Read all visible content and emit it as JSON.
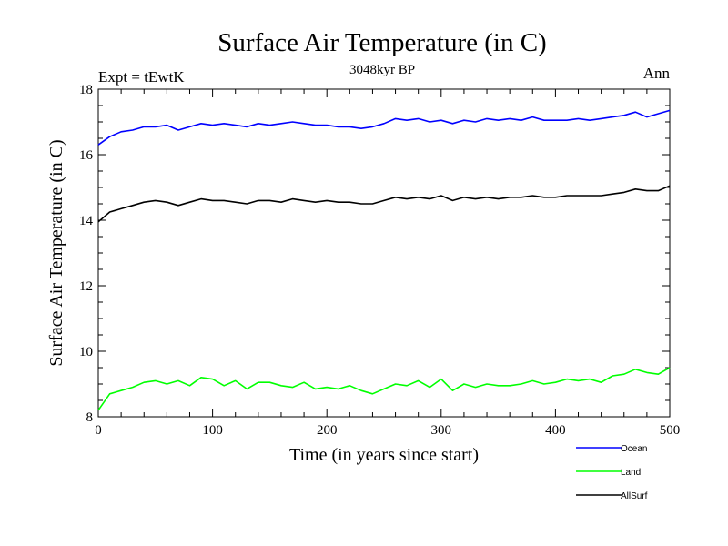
{
  "chart_data": {
    "type": "line",
    "title": "Surface Air Temperature (in C)",
    "subtitle": "3048kyr BP",
    "left_label": "Expt = tEwtK",
    "right_label": "Ann",
    "xlabel": "Time (in years since start)",
    "ylabel": "Surface Air Temperature (in C)",
    "xlim": [
      0,
      500
    ],
    "ylim": [
      8,
      18
    ],
    "x_ticks": [
      0,
      100,
      200,
      300,
      400,
      500
    ],
    "y_ticks": [
      8,
      10,
      12,
      14,
      16,
      18
    ],
    "x_tick_labels": [
      "0",
      "100",
      "200",
      "300",
      "400",
      "500"
    ],
    "y_tick_labels": [
      "8",
      "10",
      "12",
      "14",
      "16",
      "18"
    ],
    "grid": false,
    "legend_position": "bottom-right outside",
    "x": [
      0,
      10,
      20,
      30,
      40,
      50,
      60,
      70,
      80,
      90,
      100,
      110,
      120,
      130,
      140,
      150,
      160,
      170,
      180,
      190,
      200,
      210,
      220,
      230,
      240,
      250,
      260,
      270,
      280,
      290,
      300,
      310,
      320,
      330,
      340,
      350,
      360,
      370,
      380,
      390,
      400,
      410,
      420,
      430,
      440,
      450,
      460,
      470,
      480,
      490,
      500
    ],
    "series": [
      {
        "name": "Ocean",
        "color": "#0000ff",
        "values": [
          16.3,
          16.55,
          16.7,
          16.75,
          16.85,
          16.85,
          16.9,
          16.75,
          16.85,
          16.95,
          16.9,
          16.95,
          16.9,
          16.85,
          16.95,
          16.9,
          16.95,
          17.0,
          16.95,
          16.9,
          16.9,
          16.85,
          16.85,
          16.8,
          16.85,
          16.95,
          17.1,
          17.05,
          17.1,
          17.0,
          17.05,
          16.95,
          17.05,
          17.0,
          17.1,
          17.05,
          17.1,
          17.05,
          17.15,
          17.05,
          17.05,
          17.05,
          17.1,
          17.05,
          17.1,
          17.15,
          17.2,
          17.3,
          17.15,
          17.25,
          17.35
        ]
      },
      {
        "name": "Land",
        "color": "#00ff00",
        "values": [
          8.2,
          8.7,
          8.8,
          8.9,
          9.05,
          9.1,
          9.0,
          9.1,
          8.95,
          9.2,
          9.15,
          8.95,
          9.1,
          8.85,
          9.05,
          9.05,
          8.95,
          8.9,
          9.05,
          8.85,
          8.9,
          8.85,
          8.95,
          8.8,
          8.7,
          8.85,
          9.0,
          8.95,
          9.1,
          8.9,
          9.15,
          8.8,
          9.0,
          8.9,
          9.0,
          8.95,
          8.95,
          9.0,
          9.1,
          9.0,
          9.05,
          9.15,
          9.1,
          9.15,
          9.05,
          9.25,
          9.3,
          9.45,
          9.35,
          9.3,
          9.5
        ]
      },
      {
        "name": "AllSurf",
        "color": "#000000",
        "values": [
          13.95,
          14.25,
          14.35,
          14.45,
          14.55,
          14.6,
          14.55,
          14.45,
          14.55,
          14.65,
          14.6,
          14.6,
          14.55,
          14.5,
          14.6,
          14.6,
          14.55,
          14.65,
          14.6,
          14.55,
          14.6,
          14.55,
          14.55,
          14.5,
          14.5,
          14.6,
          14.7,
          14.65,
          14.7,
          14.65,
          14.75,
          14.6,
          14.7,
          14.65,
          14.7,
          14.65,
          14.7,
          14.7,
          14.75,
          14.7,
          14.7,
          14.75,
          14.75,
          14.75,
          14.75,
          14.8,
          14.85,
          14.95,
          14.9,
          14.9,
          15.05
        ]
      }
    ]
  }
}
